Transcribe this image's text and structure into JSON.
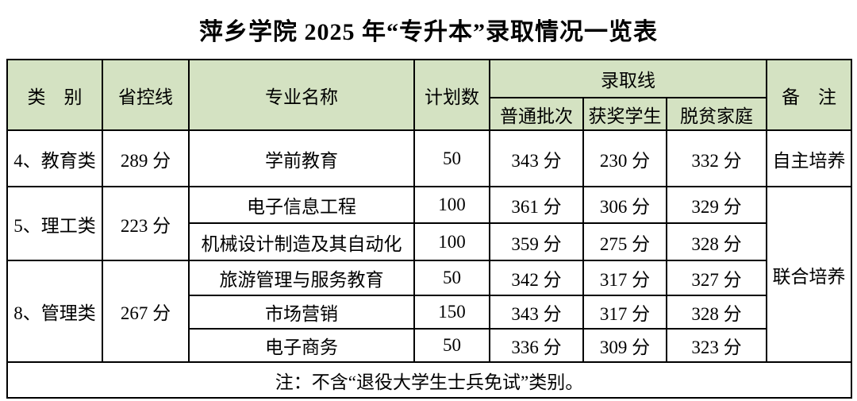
{
  "page": {
    "title": "萍乡学院 2025 年“专升本”录取情况一览表"
  },
  "colors": {
    "header_bg": "#d4e2c2",
    "border": "#000000",
    "page_bg": "#ffffff",
    "text": "#000000"
  },
  "table": {
    "headers": {
      "category": "类　别",
      "province_control_line": "省控线",
      "major_name": "专业名称",
      "plan_count": "计划数",
      "admission_line": "录取线",
      "admission_sub": {
        "normal": "普通批次",
        "award": "获奖学生",
        "poverty": "脱贫家庭"
      },
      "remark": "备　注"
    },
    "rows": [
      {
        "category": "4、教育类",
        "province_line": "289 分",
        "major": "学前教育",
        "plan": "50",
        "normal": "343 分",
        "award": "230 分",
        "poverty": "332 分",
        "remark": "自主培养"
      },
      {
        "category": "5、理工类",
        "province_line": "223 分",
        "major": "电子信息工程",
        "plan": "100",
        "normal": "361 分",
        "award": "306 分",
        "poverty": "329 分",
        "remark": "联合培养"
      },
      {
        "major": "机械设计制造及其自动化",
        "plan": "100",
        "normal": "359 分",
        "award": "275 分",
        "poverty": "328 分"
      },
      {
        "category": "8、管理类",
        "province_line": "267 分",
        "major": "旅游管理与服务教育",
        "plan": "50",
        "normal": "342 分",
        "award": "317 分",
        "poverty": "327 分"
      },
      {
        "major": "市场营销",
        "plan": "150",
        "normal": "343 分",
        "award": "317 分",
        "poverty": "328 分"
      },
      {
        "major": "电子商务",
        "plan": "50",
        "normal": "336 分",
        "award": "309 分",
        "poverty": "323 分"
      }
    ],
    "note": "注：不含“退役大学生士兵免试”类别。"
  }
}
